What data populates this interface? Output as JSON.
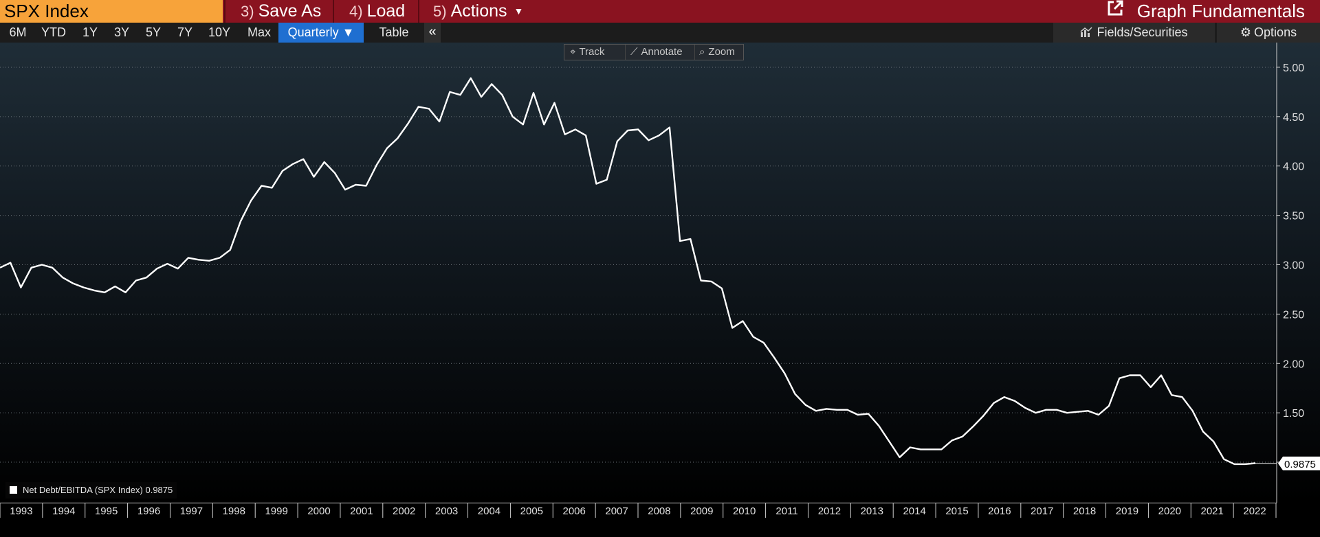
{
  "header": {
    "security": "SPX Index",
    "buttons": [
      {
        "num": "3)",
        "label": "Save As"
      },
      {
        "num": "4)",
        "label": "Load"
      },
      {
        "num": "5)",
        "label": "Actions"
      }
    ],
    "title": "Graph Fundamentals"
  },
  "toolbar": {
    "periods": [
      "6M",
      "YTD",
      "1Y",
      "3Y",
      "5Y",
      "7Y",
      "10Y",
      "Max"
    ],
    "frequency": "Quarterly ▼",
    "table": "Table",
    "collapse": "«",
    "fields": "Fields/Securities",
    "options": "Options"
  },
  "chart_tools": {
    "track": "Track",
    "annotate": "Annotate",
    "zoom": "Zoom"
  },
  "colors": {
    "topbar": "#8a1320",
    "security": "#f7a33a",
    "active": "#1f6fd1",
    "line": "#ffffff"
  },
  "chart_data": {
    "type": "line",
    "series": [
      {
        "name": "Net Debt/EBITDA (SPX Index)",
        "last_value": "0.9875",
        "values": [
          2.97,
          3.02,
          2.77,
          2.97,
          3.0,
          2.97,
          2.87,
          2.81,
          2.77,
          2.74,
          2.72,
          2.78,
          2.72,
          2.84,
          2.87,
          2.96,
          3.01,
          2.96,
          3.07,
          3.05,
          3.04,
          3.07,
          3.15,
          3.44,
          3.65,
          3.8,
          3.78,
          3.95,
          4.02,
          4.07,
          3.89,
          4.04,
          3.93,
          3.76,
          3.81,
          3.8,
          4.01,
          4.18,
          4.28,
          4.43,
          4.6,
          4.58,
          4.45,
          4.75,
          4.72,
          4.89,
          4.7,
          4.83,
          4.72,
          4.5,
          4.42,
          4.74,
          4.42,
          4.64,
          4.32,
          4.37,
          4.31,
          3.82,
          3.86,
          4.25,
          4.36,
          4.37,
          4.26,
          4.31,
          4.39,
          3.24,
          3.26,
          2.84,
          2.83,
          2.76,
          2.36,
          2.43,
          2.27,
          2.21,
          2.06,
          1.9,
          1.69,
          1.58,
          1.52,
          1.54,
          1.53,
          1.53,
          1.48,
          1.49,
          1.37,
          1.21,
          1.05,
          1.15,
          1.13,
          1.13,
          1.13,
          1.22,
          1.26,
          1.36,
          1.47,
          1.6,
          1.66,
          1.62,
          1.55,
          1.5,
          1.53,
          1.53,
          1.5,
          1.51,
          1.52,
          1.48,
          1.57,
          1.85,
          1.88,
          1.88,
          1.76,
          1.88,
          1.68,
          1.66,
          1.52,
          1.31,
          1.21,
          1.03,
          0.98,
          0.98,
          0.99
        ]
      }
    ],
    "x_labels": [
      "1993",
      "1994",
      "1995",
      "1996",
      "1997",
      "1998",
      "1999",
      "2000",
      "2001",
      "2002",
      "2003",
      "2004",
      "2005",
      "2006",
      "2007",
      "2008",
      "2009",
      "2010",
      "2011",
      "2012",
      "2013",
      "2014",
      "2015",
      "2016",
      "2017",
      "2018",
      "2019",
      "2020",
      "2021",
      "2022"
    ],
    "y_ticks": [
      5.0,
      4.5,
      4.0,
      3.5,
      3.0,
      2.5,
      2.0,
      1.5,
      1.0
    ],
    "y_tick_labels": [
      "5.00",
      "4.50",
      "4.00",
      "3.50",
      "3.00",
      "2.50",
      "2.00",
      "1.50",
      ""
    ],
    "ylim": [
      0.59,
      5.25
    ],
    "grid": true,
    "legend_position": "bottom-left"
  }
}
